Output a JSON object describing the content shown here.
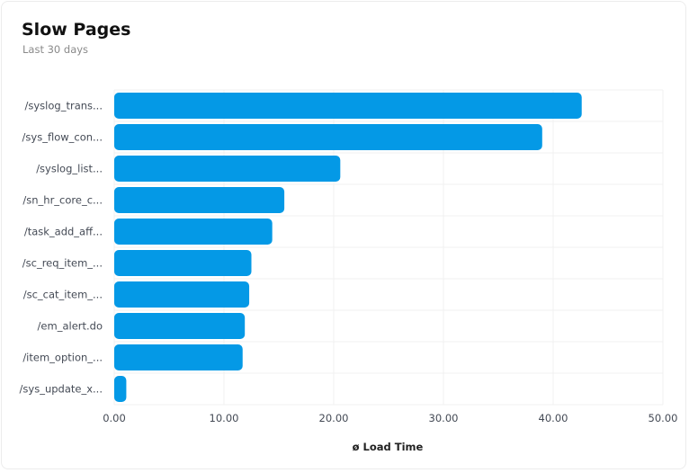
{
  "header": {
    "title": "Slow Pages",
    "subtitle": "Last 30 days"
  },
  "colors": {
    "bar": "#0499e6",
    "grid": "#f0f0f0"
  },
  "chart_data": {
    "type": "bar",
    "orientation": "horizontal",
    "title": "Slow Pages",
    "subtitle": "Last 30 days",
    "xlabel": "ø Load Time",
    "ylabel": "",
    "xlim": [
      0,
      50
    ],
    "x_ticks": [
      "0.00",
      "10.00",
      "20.00",
      "30.00",
      "40.00",
      "50.00"
    ],
    "grid": true,
    "legend": "none",
    "categories": [
      "/syslog_trans...",
      "/sys_flow_con...",
      "/syslog_list...",
      "/sn_hr_core_c...",
      "/task_add_aff...",
      "/sc_req_item_...",
      "/sc_cat_item_...",
      "/em_alert.do",
      "/item_option_...",
      "/sys_update_x..."
    ],
    "values": [
      42.6,
      39.0,
      20.6,
      15.5,
      14.4,
      12.5,
      12.3,
      11.9,
      11.7,
      1.1
    ]
  }
}
